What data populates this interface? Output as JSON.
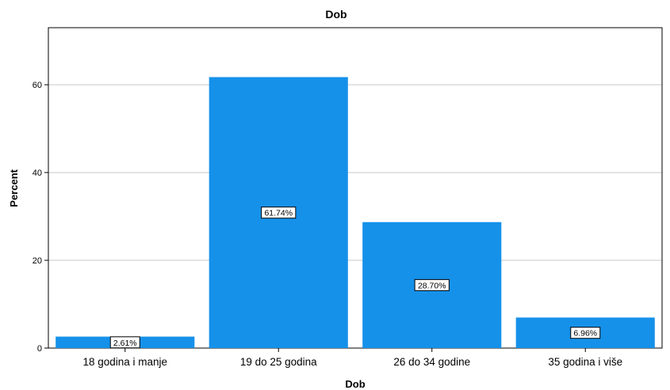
{
  "chart_data": {
    "type": "bar",
    "title": "Dob",
    "xlabel": "Dob",
    "ylabel": "Percent",
    "categories": [
      "18 godina i manje",
      "19 do 25 godina",
      "26 do 34 godine",
      "35 godina i više"
    ],
    "values": [
      2.61,
      61.74,
      28.7,
      6.96
    ],
    "data_labels": [
      "2.61%",
      "61.74%",
      "28.70%",
      "6.96%"
    ],
    "yticks": [
      0,
      20,
      40,
      60
    ],
    "ylim": [
      0,
      73
    ],
    "grid": true,
    "legend": "none",
    "bar_color": "#1591EA"
  }
}
